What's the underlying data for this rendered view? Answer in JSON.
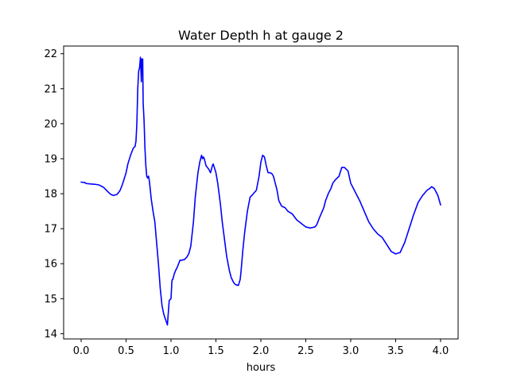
{
  "chart_data": {
    "type": "line",
    "title": "Water Depth h at gauge 2",
    "xlabel": "hours",
    "ylabel": "",
    "xlim": [
      -0.195,
      4.195
    ],
    "ylim": [
      13.85,
      22.22
    ],
    "xticks": [
      0.0,
      0.5,
      1.0,
      1.5,
      2.0,
      2.5,
      3.0,
      3.5,
      4.0
    ],
    "xtick_labels": [
      "0.0",
      "0.5",
      "1.0",
      "1.5",
      "2.0",
      "2.5",
      "3.0",
      "3.5",
      "4.0"
    ],
    "yticks": [
      14,
      15,
      16,
      17,
      18,
      19,
      20,
      21,
      22
    ],
    "ytick_labels": [
      "14",
      "15",
      "16",
      "17",
      "18",
      "19",
      "20",
      "21",
      "22"
    ],
    "grid": false,
    "legend": "none",
    "series": [
      {
        "color": "#0000ff",
        "x": [
          0.0,
          0.04,
          0.05,
          0.06,
          0.1,
          0.15,
          0.2,
          0.25,
          0.3,
          0.33,
          0.36,
          0.4,
          0.43,
          0.45,
          0.47,
          0.5,
          0.52,
          0.55,
          0.58,
          0.6,
          0.61,
          0.62,
          0.63,
          0.64,
          0.65,
          0.66,
          0.67,
          0.675,
          0.68,
          0.685,
          0.69,
          0.7,
          0.71,
          0.72,
          0.73,
          0.74,
          0.75,
          0.76,
          0.77,
          0.78,
          0.8,
          0.82,
          0.84,
          0.86,
          0.88,
          0.9,
          0.92,
          0.94,
          0.96,
          0.98,
          1.0,
          1.01,
          1.015,
          1.02,
          1.03,
          1.035,
          1.05,
          1.07,
          1.1,
          1.12,
          1.15,
          1.18,
          1.2,
          1.22,
          1.25,
          1.27,
          1.3,
          1.32,
          1.34,
          1.35,
          1.36,
          1.37,
          1.39,
          1.42,
          1.44,
          1.46,
          1.47,
          1.5,
          1.52,
          1.55,
          1.57,
          1.6,
          1.62,
          1.65,
          1.67,
          1.7,
          1.72,
          1.75,
          1.77,
          1.78,
          1.8,
          1.82,
          1.85,
          1.88,
          1.9,
          1.95,
          1.98,
          2.0,
          2.02,
          2.04,
          2.06,
          2.08,
          2.1,
          2.12,
          2.14,
          2.16,
          2.18,
          2.2,
          2.23,
          2.25,
          2.27,
          2.3,
          2.35,
          2.4,
          2.45,
          2.5,
          2.55,
          2.6,
          2.62,
          2.65,
          2.7,
          2.72,
          2.75,
          2.78,
          2.8,
          2.83,
          2.85,
          2.87,
          2.9,
          2.93,
          2.95,
          2.97,
          3.0,
          3.05,
          3.1,
          3.15,
          3.2,
          3.25,
          3.3,
          3.35,
          3.4,
          3.45,
          3.5,
          3.55,
          3.6,
          3.65,
          3.7,
          3.75,
          3.8,
          3.85,
          3.88,
          3.9,
          3.93,
          3.95,
          3.97,
          4.0
        ],
        "y": [
          18.33,
          18.32,
          18.3,
          18.29,
          18.28,
          18.27,
          18.25,
          18.18,
          18.05,
          17.98,
          17.95,
          17.98,
          18.08,
          18.2,
          18.35,
          18.6,
          18.85,
          19.1,
          19.3,
          19.35,
          19.5,
          20.0,
          21.0,
          21.5,
          21.6,
          21.9,
          21.2,
          21.85,
          21.6,
          21.85,
          20.6,
          20.1,
          19.3,
          18.8,
          18.5,
          18.45,
          18.5,
          18.35,
          18.1,
          17.85,
          17.5,
          17.2,
          16.6,
          16.0,
          15.3,
          14.8,
          14.55,
          14.4,
          14.25,
          14.95,
          15.0,
          15.5,
          15.55,
          15.55,
          15.65,
          15.7,
          15.8,
          15.9,
          16.1,
          16.1,
          16.12,
          16.2,
          16.3,
          16.5,
          17.2,
          17.9,
          18.6,
          18.9,
          19.1,
          19.0,
          19.05,
          19.0,
          18.8,
          18.7,
          18.6,
          18.8,
          18.85,
          18.6,
          18.3,
          17.7,
          17.2,
          16.6,
          16.2,
          15.8,
          15.6,
          15.45,
          15.4,
          15.38,
          15.55,
          15.8,
          16.4,
          16.9,
          17.5,
          17.9,
          17.95,
          18.1,
          18.5,
          18.9,
          19.1,
          19.05,
          18.8,
          18.6,
          18.6,
          18.58,
          18.5,
          18.3,
          18.1,
          17.8,
          17.65,
          17.62,
          17.6,
          17.5,
          17.42,
          17.25,
          17.15,
          17.05,
          17.02,
          17.05,
          17.1,
          17.3,
          17.6,
          17.8,
          18.0,
          18.15,
          18.3,
          18.4,
          18.45,
          18.5,
          18.75,
          18.75,
          18.7,
          18.65,
          18.3,
          18.05,
          17.8,
          17.5,
          17.2,
          17.0,
          16.85,
          16.75,
          16.55,
          16.35,
          16.28,
          16.32,
          16.6,
          17.0,
          17.4,
          17.75,
          17.95,
          18.1,
          18.15,
          18.2,
          18.15,
          18.05,
          17.95,
          17.68
        ]
      }
    ]
  }
}
